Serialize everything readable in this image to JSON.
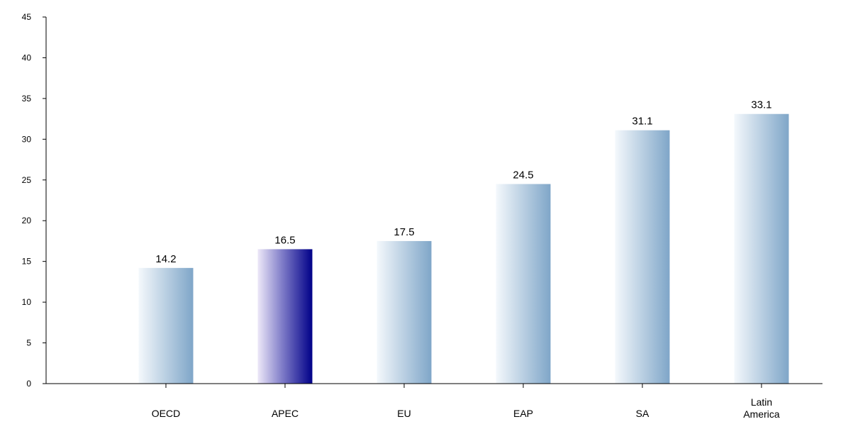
{
  "chart_data": {
    "type": "bar",
    "title": "",
    "xlabel": "",
    "ylabel": "",
    "categories": [
      [
        "OECD"
      ],
      [
        "APEC"
      ],
      [
        "EU"
      ],
      [
        "EAP"
      ],
      [
        "SA"
      ],
      [
        "Latin",
        "America"
      ]
    ],
    "values": [
      14.2,
      16.5,
      17.5,
      24.5,
      31.1,
      33.1
    ],
    "value_labels": [
      "14.2",
      "16.5",
      "17.5",
      "24.5",
      "31.1",
      "33.1"
    ],
    "highlight_index": 1,
    "ylim": [
      0,
      45
    ],
    "yticks": [
      0,
      5,
      10,
      15,
      20,
      25,
      30,
      35,
      40,
      45
    ],
    "grid": false,
    "legend": "none",
    "colors": {
      "bar_light": "#f4f8fc",
      "bar_dark": "#7fa6c8",
      "highlight_light": "#ede8f8",
      "highlight_mid": "#7f7cc8",
      "highlight_dark": "#000088",
      "axis": "#000000"
    }
  }
}
